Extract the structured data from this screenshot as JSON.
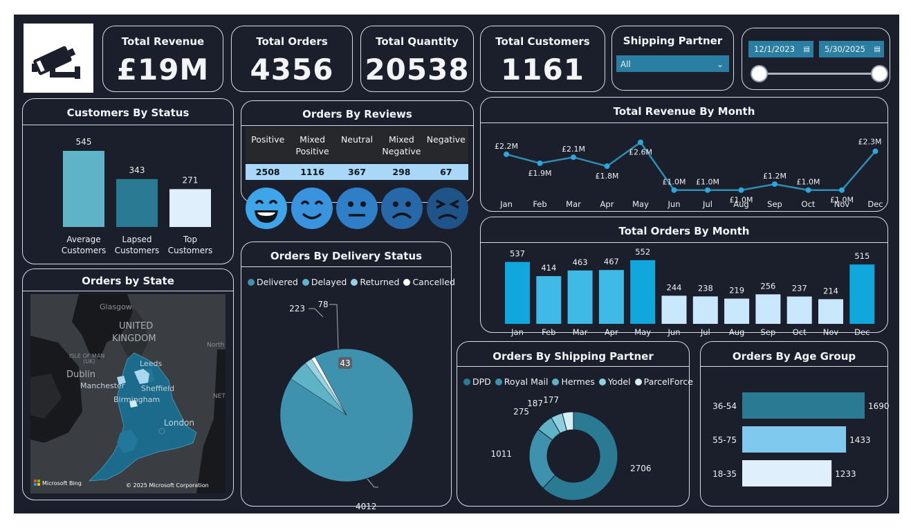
{
  "kpis": {
    "revenue": {
      "label": "Total Revenue",
      "value": "£19M"
    },
    "orders": {
      "label": "Total Orders",
      "value": "4356"
    },
    "quantity": {
      "label": "Total Quantity",
      "value": "20538"
    },
    "customers": {
      "label": "Total Customers",
      "value": "1161"
    }
  },
  "shipping_slicer": {
    "title": "Shipping Partner",
    "selected": "All"
  },
  "date_slicer": {
    "start": "12/1/2023",
    "end": "5/30/2025"
  },
  "map": {
    "title": "Orders by State",
    "labels": [
      "Glasgow",
      "UNITED",
      "KINGDOM",
      "ISLE OF MAN",
      "(UK)",
      "Dublin",
      "Leeds",
      "Manchester",
      "Sheffield",
      "Birmingham",
      "London",
      "North",
      "NET"
    ],
    "bing": "Microsoft Bing",
    "copyright": "© 2025 Microsoft Corporation"
  },
  "reviews": {
    "title": "Orders By Reviews",
    "columns": [
      "Positive",
      "Mixed Positive",
      "Neutral",
      "Mixed Negative",
      "Negative"
    ],
    "values": [
      "2508",
      "1116",
      "367",
      "298",
      "67"
    ]
  },
  "colors": {
    "background": "#1a1f2b",
    "border": "#d7dbe2",
    "accent": "#2a7ea2",
    "bright_blue": "#0fa7dc",
    "light_blue": "#c9e8fb",
    "teal": "#5fb3c6",
    "deep_teal": "#2b7a93"
  },
  "chart_data": [
    {
      "id": "customers_by_status",
      "type": "bar",
      "title": "Customers By Status",
      "categories": [
        "Average Customers",
        "Lapsed Customers",
        "Top Customers"
      ],
      "values": [
        545,
        343,
        271
      ],
      "colors": [
        "#5fb3c6",
        "#2b7a93",
        "#dff0fc"
      ]
    },
    {
      "id": "revenue_by_month",
      "type": "line",
      "title": "Total Revenue By Month",
      "categories": [
        "Jan",
        "Feb",
        "Mar",
        "Apr",
        "May",
        "Jun",
        "Jul",
        "Aug",
        "Sep",
        "Oct",
        "Nov",
        "Dec"
      ],
      "values": [
        2.2,
        1.9,
        2.1,
        1.8,
        2.6,
        1.0,
        1.0,
        1.0,
        1.2,
        1.0,
        1.0,
        2.3
      ],
      "labels": [
        "£2.2M",
        "£1.9M",
        "£2.1M",
        "£1.8M",
        "£2.6M",
        "£1.0M",
        "£1.0M",
        "£1.0M",
        "£1.2M",
        "£1.0M",
        "£1.0M",
        "£2.3M"
      ],
      "ylim": [
        0.6,
        2.8
      ]
    },
    {
      "id": "orders_by_month",
      "type": "bar",
      "title": "Total Orders By Month",
      "categories": [
        "Jan",
        "Feb",
        "Mar",
        "Apr",
        "May",
        "Jun",
        "Jul",
        "Aug",
        "Sep",
        "Oct",
        "Nov",
        "Dec"
      ],
      "values": [
        537,
        414,
        463,
        467,
        552,
        244,
        238,
        219,
        256,
        237,
        214,
        515
      ],
      "ylim": [
        0,
        600
      ]
    },
    {
      "id": "delivery_status",
      "type": "pie",
      "title": "Orders By Delivery Status",
      "categories": [
        "Delivered",
        "Delayed",
        "Returned",
        "Cancelled"
      ],
      "values": [
        4012,
        223,
        78,
        43
      ],
      "colors": [
        "#3f92ad",
        "#5fb3c6",
        "#95d3e4",
        "#ffffff"
      ]
    },
    {
      "id": "shipping_partner",
      "type": "pie",
      "title": "Orders By Shipping Partner",
      "categories": [
        "DPD",
        "Royal Mail",
        "Hermes",
        "Yodel",
        "ParcelForce"
      ],
      "values": [
        2706,
        1011,
        275,
        187,
        177
      ],
      "colors": [
        "#2b7a93",
        "#3f92ad",
        "#5fb3c6",
        "#8fd0e0",
        "#d3f0f5"
      ]
    },
    {
      "id": "age_group",
      "type": "bar",
      "title": "Orders By Age Group",
      "categories": [
        "36-54",
        "55-75",
        "18-35"
      ],
      "values": [
        1690,
        1433,
        1233
      ],
      "colors": [
        "#2b7a93",
        "#7fc9ee",
        "#dff0fc"
      ],
      "xlim": [
        0,
        1690
      ]
    }
  ]
}
